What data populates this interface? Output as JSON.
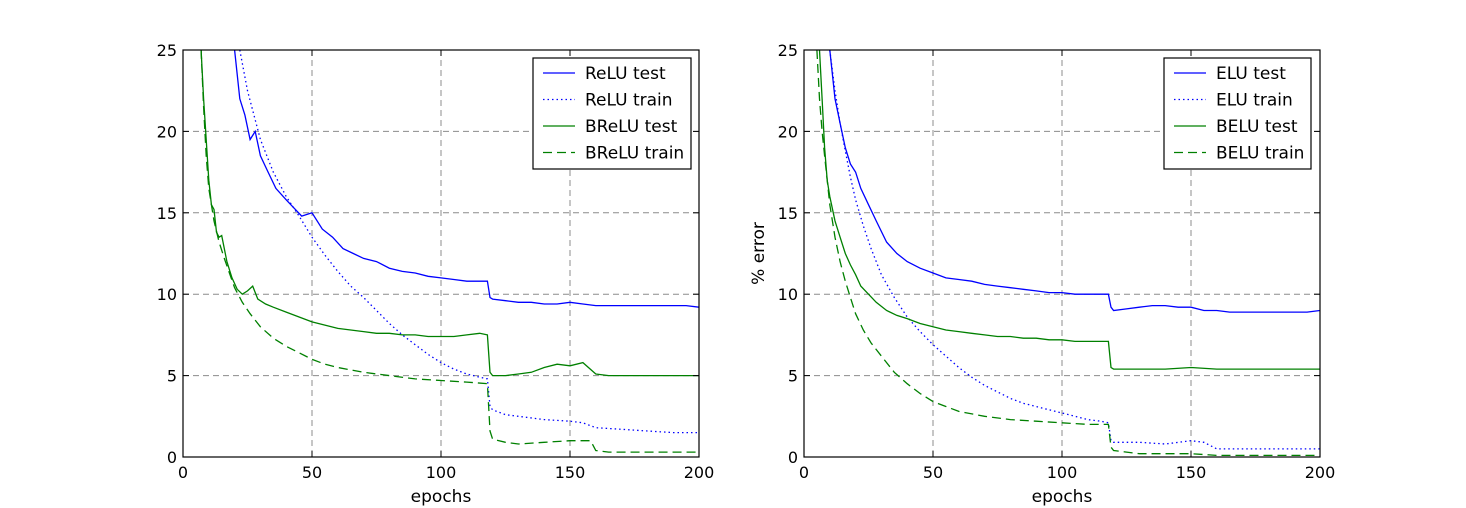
{
  "colors": {
    "blue": "#0000ff",
    "green": "#008000"
  },
  "chart_data": [
    {
      "type": "line",
      "title": "",
      "xlabel": "epochs",
      "ylabel": "",
      "xlim": [
        0,
        200
      ],
      "ylim": [
        0,
        25
      ],
      "xticks": [
        0,
        50,
        100,
        150,
        200
      ],
      "yticks": [
        0,
        5,
        10,
        15,
        20,
        25
      ],
      "grid": true,
      "legend_position": "top-right",
      "series": [
        {
          "name": "ReLU test",
          "color": "#0000ff",
          "style": "solid",
          "x": [
            20,
            22,
            24,
            26,
            28,
            30,
            33,
            36,
            40,
            43,
            46,
            50,
            54,
            58,
            62,
            66,
            70,
            75,
            80,
            85,
            90,
            95,
            100,
            105,
            110,
            115,
            118,
            119,
            120,
            125,
            130,
            135,
            140,
            145,
            150,
            155,
            160,
            165,
            170,
            175,
            180,
            185,
            190,
            195,
            200
          ],
          "y": [
            25,
            22,
            21,
            19.5,
            20,
            18.5,
            17.5,
            16.5,
            15.8,
            15.3,
            14.8,
            15,
            14,
            13.5,
            12.8,
            12.5,
            12.2,
            12,
            11.6,
            11.4,
            11.3,
            11.1,
            11,
            10.9,
            10.8,
            10.8,
            10.8,
            9.8,
            9.7,
            9.6,
            9.5,
            9.5,
            9.4,
            9.4,
            9.5,
            9.4,
            9.3,
            9.3,
            9.3,
            9.3,
            9.3,
            9.3,
            9.3,
            9.3,
            9.2
          ]
        },
        {
          "name": "ReLU train",
          "color": "#0000ff",
          "style": "dotted",
          "x": [
            22,
            25,
            30,
            35,
            40,
            45,
            50,
            55,
            60,
            65,
            70,
            75,
            80,
            85,
            90,
            95,
            100,
            105,
            110,
            115,
            118,
            119,
            120,
            125,
            130,
            140,
            150,
            155,
            160,
            170,
            180,
            190,
            200
          ],
          "y": [
            25,
            22.5,
            19.5,
            17.5,
            16,
            14.8,
            13.5,
            12.4,
            11.4,
            10.5,
            9.8,
            9,
            8.2,
            7.5,
            6.9,
            6.3,
            5.8,
            5.4,
            5.1,
            4.9,
            4.8,
            3.1,
            2.9,
            2.6,
            2.5,
            2.3,
            2.2,
            2.1,
            1.8,
            1.7,
            1.6,
            1.5,
            1.5
          ]
        },
        {
          "name": "BReLU test",
          "color": "#008000",
          "style": "solid",
          "x": [
            7,
            8,
            9,
            10,
            11,
            12,
            13,
            14,
            15,
            17,
            19,
            21,
            23,
            25,
            27,
            29,
            32,
            35,
            40,
            45,
            50,
            55,
            60,
            65,
            70,
            75,
            80,
            85,
            90,
            95,
            100,
            105,
            110,
            115,
            118,
            119,
            120,
            125,
            130,
            135,
            140,
            145,
            150,
            155,
            160,
            165,
            170,
            175,
            180,
            185,
            190,
            195,
            200
          ],
          "y": [
            25,
            22,
            19.5,
            17,
            15.5,
            15.2,
            13.8,
            13.5,
            13.6,
            12,
            11,
            10.3,
            10,
            10.2,
            10.5,
            9.7,
            9.4,
            9.2,
            8.9,
            8.6,
            8.3,
            8.1,
            7.9,
            7.8,
            7.7,
            7.6,
            7.6,
            7.5,
            7.5,
            7.4,
            7.4,
            7.4,
            7.5,
            7.6,
            7.5,
            5.2,
            5,
            5,
            5.1,
            5.2,
            5.5,
            5.7,
            5.6,
            5.8,
            5.1,
            5,
            5,
            5,
            5,
            5,
            5,
            5,
            5
          ]
        },
        {
          "name": "BReLU train",
          "color": "#008000",
          "style": "dashed",
          "x": [
            7,
            8,
            9,
            10,
            12,
            14,
            16,
            18,
            20,
            23,
            26,
            30,
            35,
            40,
            45,
            50,
            55,
            60,
            70,
            80,
            90,
            100,
            110,
            118,
            119,
            120,
            125,
            130,
            140,
            150,
            155,
            158,
            160,
            165,
            170,
            180,
            190,
            200
          ],
          "y": [
            25,
            21.5,
            18.5,
            16.5,
            14.5,
            13.2,
            12.2,
            11.3,
            10.4,
            9.5,
            8.8,
            8,
            7.3,
            6.8,
            6.4,
            6,
            5.7,
            5.5,
            5.2,
            5,
            4.8,
            4.7,
            4.6,
            4.5,
            1.6,
            1.1,
            0.9,
            0.8,
            0.9,
            1,
            1,
            1,
            0.4,
            0.3,
            0.3,
            0.3,
            0.3,
            0.3
          ]
        }
      ]
    },
    {
      "type": "line",
      "title": "",
      "xlabel": "epochs",
      "ylabel": "% error",
      "xlim": [
        0,
        200
      ],
      "ylim": [
        0,
        25
      ],
      "xticks": [
        0,
        50,
        100,
        150,
        200
      ],
      "yticks": [
        0,
        5,
        10,
        15,
        20,
        25
      ],
      "grid": true,
      "legend_position": "top-right",
      "series": [
        {
          "name": "ELU test",
          "color": "#0000ff",
          "style": "solid",
          "x": [
            10,
            12,
            14,
            16,
            18,
            20,
            22,
            25,
            28,
            32,
            36,
            40,
            45,
            50,
            55,
            60,
            65,
            70,
            75,
            80,
            85,
            90,
            95,
            100,
            105,
            110,
            115,
            118,
            119,
            120,
            125,
            130,
            135,
            140,
            145,
            150,
            155,
            160,
            165,
            170,
            175,
            180,
            185,
            190,
            195,
            200
          ],
          "y": [
            25,
            22,
            20.5,
            19,
            18,
            17.5,
            16.5,
            15.5,
            14.5,
            13.2,
            12.5,
            12,
            11.6,
            11.3,
            11,
            10.9,
            10.8,
            10.6,
            10.5,
            10.4,
            10.3,
            10.2,
            10.1,
            10.1,
            10,
            10,
            10,
            10,
            9.2,
            9,
            9.1,
            9.2,
            9.3,
            9.3,
            9.2,
            9.2,
            9,
            9,
            8.9,
            8.9,
            8.9,
            8.9,
            8.9,
            8.9,
            8.9,
            9
          ]
        },
        {
          "name": "ELU train",
          "color": "#0000ff",
          "style": "dotted",
          "x": [
            10,
            12,
            14,
            16,
            18,
            20,
            23,
            26,
            30,
            35,
            40,
            45,
            50,
            55,
            60,
            65,
            70,
            75,
            80,
            85,
            90,
            95,
            100,
            105,
            110,
            115,
            118,
            119,
            120,
            125,
            130,
            140,
            150,
            155,
            160,
            170,
            180,
            190,
            200
          ],
          "y": [
            25,
            22.5,
            20.5,
            18.8,
            17.2,
            15.8,
            14.2,
            12.8,
            11.2,
            9.8,
            8.6,
            7.7,
            6.9,
            6.2,
            5.5,
            4.9,
            4.4,
            4,
            3.6,
            3.3,
            3.1,
            2.9,
            2.7,
            2.5,
            2.3,
            2.2,
            2.1,
            1,
            0.9,
            0.9,
            0.9,
            0.8,
            1,
            0.9,
            0.5,
            0.5,
            0.5,
            0.5,
            0.5
          ]
        },
        {
          "name": "BELU test",
          "color": "#008000",
          "style": "solid",
          "x": [
            6,
            7,
            8,
            9,
            10,
            12,
            14,
            16,
            18,
            20,
            22,
            25,
            28,
            32,
            36,
            40,
            45,
            50,
            55,
            60,
            65,
            70,
            75,
            80,
            85,
            90,
            95,
            100,
            105,
            110,
            115,
            118,
            119,
            120,
            125,
            130,
            140,
            150,
            160,
            170,
            180,
            190,
            200
          ],
          "y": [
            25,
            22,
            19,
            17,
            16,
            14.5,
            13.5,
            12.5,
            11.8,
            11.2,
            10.5,
            10,
            9.5,
            9,
            8.7,
            8.5,
            8.2,
            8,
            7.8,
            7.7,
            7.6,
            7.5,
            7.4,
            7.4,
            7.3,
            7.3,
            7.2,
            7.2,
            7.1,
            7.1,
            7.1,
            7.1,
            5.5,
            5.4,
            5.4,
            5.4,
            5.4,
            5.5,
            5.4,
            5.4,
            5.4,
            5.4,
            5.4
          ]
        },
        {
          "name": "BELU train",
          "color": "#008000",
          "style": "dashed",
          "x": [
            5,
            6,
            7,
            8,
            9,
            10,
            12,
            14,
            16,
            18,
            20,
            23,
            26,
            30,
            35,
            40,
            45,
            50,
            55,
            60,
            70,
            80,
            90,
            100,
            110,
            118,
            119,
            120,
            125,
            130,
            140,
            150,
            160,
            170,
            180,
            190,
            200
          ],
          "y": [
            25,
            22,
            20,
            18.5,
            17,
            15.5,
            13.5,
            12,
            10.8,
            9.8,
            8.8,
            7.8,
            7,
            6.2,
            5.2,
            4.5,
            3.9,
            3.4,
            3.1,
            2.8,
            2.5,
            2.3,
            2.2,
            2.1,
            2,
            2,
            0.6,
            0.4,
            0.3,
            0.2,
            0.2,
            0.2,
            0.1,
            0.1,
            0.1,
            0.1,
            0.1
          ]
        }
      ]
    }
  ]
}
